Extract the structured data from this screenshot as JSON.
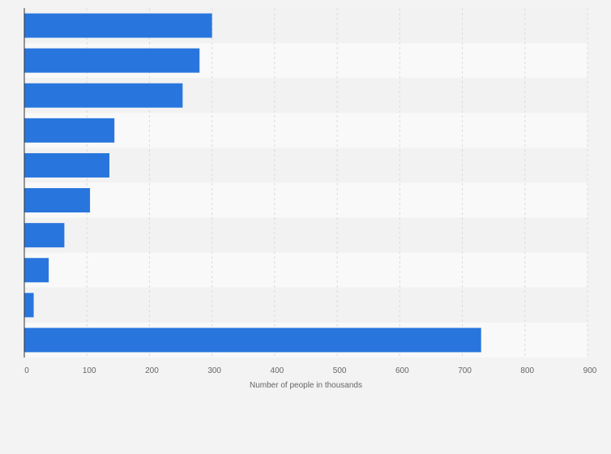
{
  "colors": {
    "bar": "#2876dd",
    "band_light": "#f9f9f9",
    "band_dark": "#f2f2f2",
    "grid": "#dcdcdc",
    "axis": "#333333"
  },
  "chart_data": {
    "type": "bar",
    "orientation": "horizontal",
    "categories": [
      "",
      "",
      "",
      "",
      "",
      "",
      "",
      "",
      "",
      ""
    ],
    "values": [
      300,
      280,
      253,
      144,
      136,
      105,
      64,
      39,
      15,
      730
    ],
    "xlabel": "Number of people in thousands",
    "ylabel": "",
    "xlim": [
      0,
      900
    ],
    "x_ticks": [
      "0",
      "100",
      "200",
      "300",
      "400",
      "500",
      "600",
      "700",
      "800",
      "900"
    ],
    "grid": true,
    "legend": "none"
  }
}
